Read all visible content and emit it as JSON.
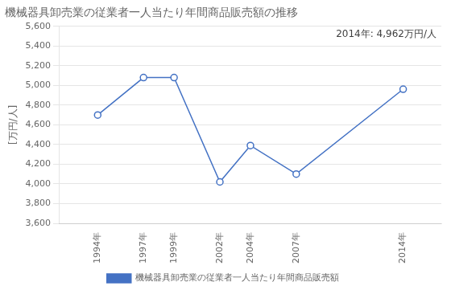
{
  "chart_data": {
    "type": "line",
    "title": "機械器具卸売業の従業者一人当たり年間商品販売額の推移",
    "ylabel": "[万円/人]",
    "annotation": "2014年: 4,962万円/人",
    "x": [
      1994,
      1997,
      1999,
      2002,
      2004,
      2007,
      2014
    ],
    "series": [
      {
        "name": "機械器具卸売業の従業者一人当たり年間商品販売額",
        "color": "#4472c4",
        "marker": "circle",
        "values": [
          4700,
          5080,
          5080,
          4020,
          4390,
          4100,
          4962
        ]
      }
    ],
    "xlim": [
      1991.5,
      2016.5
    ],
    "xticks": [
      {
        "value": 1994,
        "label": "1994年"
      },
      {
        "value": 1997,
        "label": "1997年"
      },
      {
        "value": 1999,
        "label": "1999年"
      },
      {
        "value": 2002,
        "label": "2002年"
      },
      {
        "value": 2004,
        "label": "2004年"
      },
      {
        "value": 2007,
        "label": "2007年"
      },
      {
        "value": 2014,
        "label": "2014年"
      }
    ],
    "ylim": [
      3600,
      5600
    ],
    "yticks": [
      {
        "value": 3600,
        "label": "3,600"
      },
      {
        "value": 3800,
        "label": "3,800"
      },
      {
        "value": 4000,
        "label": "4,000"
      },
      {
        "value": 4200,
        "label": "4,200"
      },
      {
        "value": 4400,
        "label": "4,400"
      },
      {
        "value": 4600,
        "label": "4,600"
      },
      {
        "value": 4800,
        "label": "4,800"
      },
      {
        "value": 5000,
        "label": "5,000"
      },
      {
        "value": 5200,
        "label": "5,200"
      },
      {
        "value": 5400,
        "label": "5,400"
      },
      {
        "value": 5600,
        "label": "5,600"
      }
    ],
    "grid": "y",
    "legend": "bottom"
  }
}
